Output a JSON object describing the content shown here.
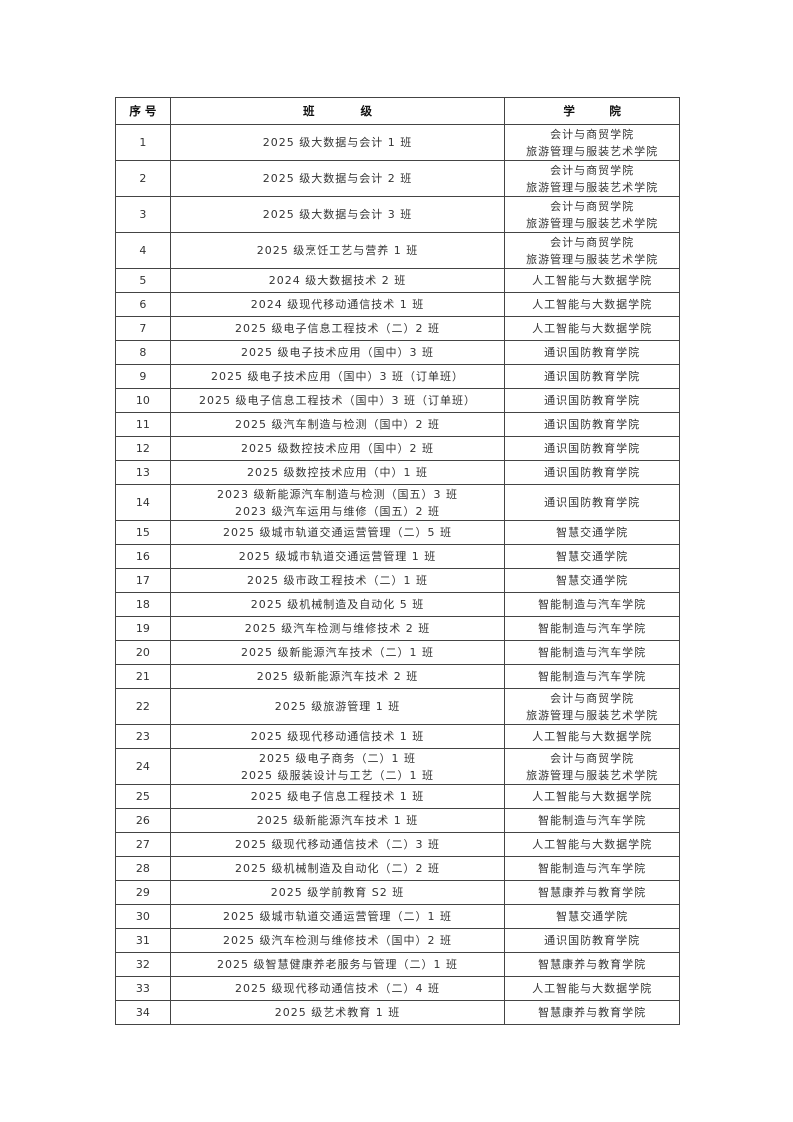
{
  "table": {
    "headers": [
      "序 号",
      "班　　　　级",
      "学　　　院"
    ],
    "rows": [
      {
        "no": "1",
        "class": [
          "2025 级大数据与会计 1 班"
        ],
        "college": [
          "会计与商贸学院",
          "旅游管理与服装艺术学院"
        ]
      },
      {
        "no": "2",
        "class": [
          "2025 级大数据与会计 2 班"
        ],
        "college": [
          "会计与商贸学院",
          "旅游管理与服装艺术学院"
        ]
      },
      {
        "no": "3",
        "class": [
          "2025 级大数据与会计 3 班"
        ],
        "college": [
          "会计与商贸学院",
          "旅游管理与服装艺术学院"
        ]
      },
      {
        "no": "4",
        "class": [
          "2025 级烹饪工艺与营养 1 班"
        ],
        "college": [
          "会计与商贸学院",
          "旅游管理与服装艺术学院"
        ]
      },
      {
        "no": "5",
        "class": [
          "2024 级大数据技术 2 班"
        ],
        "college": [
          "人工智能与大数据学院"
        ]
      },
      {
        "no": "6",
        "class": [
          "2024 级现代移动通信技术 1 班"
        ],
        "college": [
          "人工智能与大数据学院"
        ]
      },
      {
        "no": "7",
        "class": [
          "2025 级电子信息工程技术（二）2 班"
        ],
        "college": [
          "人工智能与大数据学院"
        ]
      },
      {
        "no": "8",
        "class": [
          "2025 级电子技术应用（国中）3 班"
        ],
        "college": [
          "通识国防教育学院"
        ]
      },
      {
        "no": "9",
        "class": [
          "2025 级电子技术应用（国中）3 班（订单班）"
        ],
        "college": [
          "通识国防教育学院"
        ]
      },
      {
        "no": "10",
        "class": [
          "2025 级电子信息工程技术（国中）3 班（订单班）"
        ],
        "college": [
          "通识国防教育学院"
        ]
      },
      {
        "no": "11",
        "class": [
          "2025 级汽车制造与检测（国中）2 班"
        ],
        "college": [
          "通识国防教育学院"
        ]
      },
      {
        "no": "12",
        "class": [
          "2025 级数控技术应用（国中）2 班"
        ],
        "college": [
          "通识国防教育学院"
        ]
      },
      {
        "no": "13",
        "class": [
          "2025 级数控技术应用（中）1 班"
        ],
        "college": [
          "通识国防教育学院"
        ]
      },
      {
        "no": "14",
        "class": [
          "2023 级新能源汽车制造与检测（国五）3 班",
          "2023 级汽车运用与维修（国五）2 班"
        ],
        "college": [
          "通识国防教育学院"
        ]
      },
      {
        "no": "15",
        "class": [
          "2025 级城市轨道交通运营管理（二）5 班"
        ],
        "college": [
          "智慧交通学院"
        ]
      },
      {
        "no": "16",
        "class": [
          "2025 级城市轨道交通运营管理 1 班"
        ],
        "college": [
          "智慧交通学院"
        ]
      },
      {
        "no": "17",
        "class": [
          "2025 级市政工程技术（二）1 班"
        ],
        "college": [
          "智慧交通学院"
        ]
      },
      {
        "no": "18",
        "class": [
          "2025 级机械制造及自动化 5 班"
        ],
        "college": [
          "智能制造与汽车学院"
        ]
      },
      {
        "no": "19",
        "class": [
          "2025 级汽车检测与维修技术 2 班"
        ],
        "college": [
          "智能制造与汽车学院"
        ]
      },
      {
        "no": "20",
        "class": [
          "2025 级新能源汽车技术（二）1 班"
        ],
        "college": [
          "智能制造与汽车学院"
        ]
      },
      {
        "no": "21",
        "class": [
          "2025 级新能源汽车技术 2 班"
        ],
        "college": [
          "智能制造与汽车学院"
        ]
      },
      {
        "no": "22",
        "class": [
          "2025 级旅游管理 1 班"
        ],
        "college": [
          "会计与商贸学院",
          "旅游管理与服装艺术学院"
        ]
      },
      {
        "no": "23",
        "class": [
          "2025 级现代移动通信技术 1 班"
        ],
        "college": [
          "人工智能与大数据学院"
        ]
      },
      {
        "no": "24",
        "class": [
          "2025 级电子商务（二）1 班",
          "2025 级服装设计与工艺（二）1 班"
        ],
        "college": [
          "会计与商贸学院",
          "旅游管理与服装艺术学院"
        ]
      },
      {
        "no": "25",
        "class": [
          "2025 级电子信息工程技术 1 班"
        ],
        "college": [
          "人工智能与大数据学院"
        ]
      },
      {
        "no": "26",
        "class": [
          "2025 级新能源汽车技术 1 班"
        ],
        "college": [
          "智能制造与汽车学院"
        ]
      },
      {
        "no": "27",
        "class": [
          "2025 级现代移动通信技术（二）3 班"
        ],
        "college": [
          "人工智能与大数据学院"
        ]
      },
      {
        "no": "28",
        "class": [
          "2025 级机械制造及自动化（二）2 班"
        ],
        "college": [
          "智能制造与汽车学院"
        ]
      },
      {
        "no": "29",
        "class": [
          "2025 级学前教育 S2 班"
        ],
        "college": [
          "智慧康养与教育学院"
        ]
      },
      {
        "no": "30",
        "class": [
          "2025 级城市轨道交通运营管理（二）1 班"
        ],
        "college": [
          "智慧交通学院"
        ]
      },
      {
        "no": "31",
        "class": [
          "2025 级汽车检测与维修技术（国中）2 班"
        ],
        "college": [
          "通识国防教育学院"
        ]
      },
      {
        "no": "32",
        "class": [
          "2025 级智慧健康养老服务与管理（二）1 班"
        ],
        "college": [
          "智慧康养与教育学院"
        ]
      },
      {
        "no": "33",
        "class": [
          "2025 级现代移动通信技术（二）4 班"
        ],
        "college": [
          "人工智能与大数据学院"
        ]
      },
      {
        "no": "34",
        "class": [
          "2025 级艺术教育 1 班"
        ],
        "college": [
          "智慧康养与教育学院"
        ]
      }
    ]
  }
}
